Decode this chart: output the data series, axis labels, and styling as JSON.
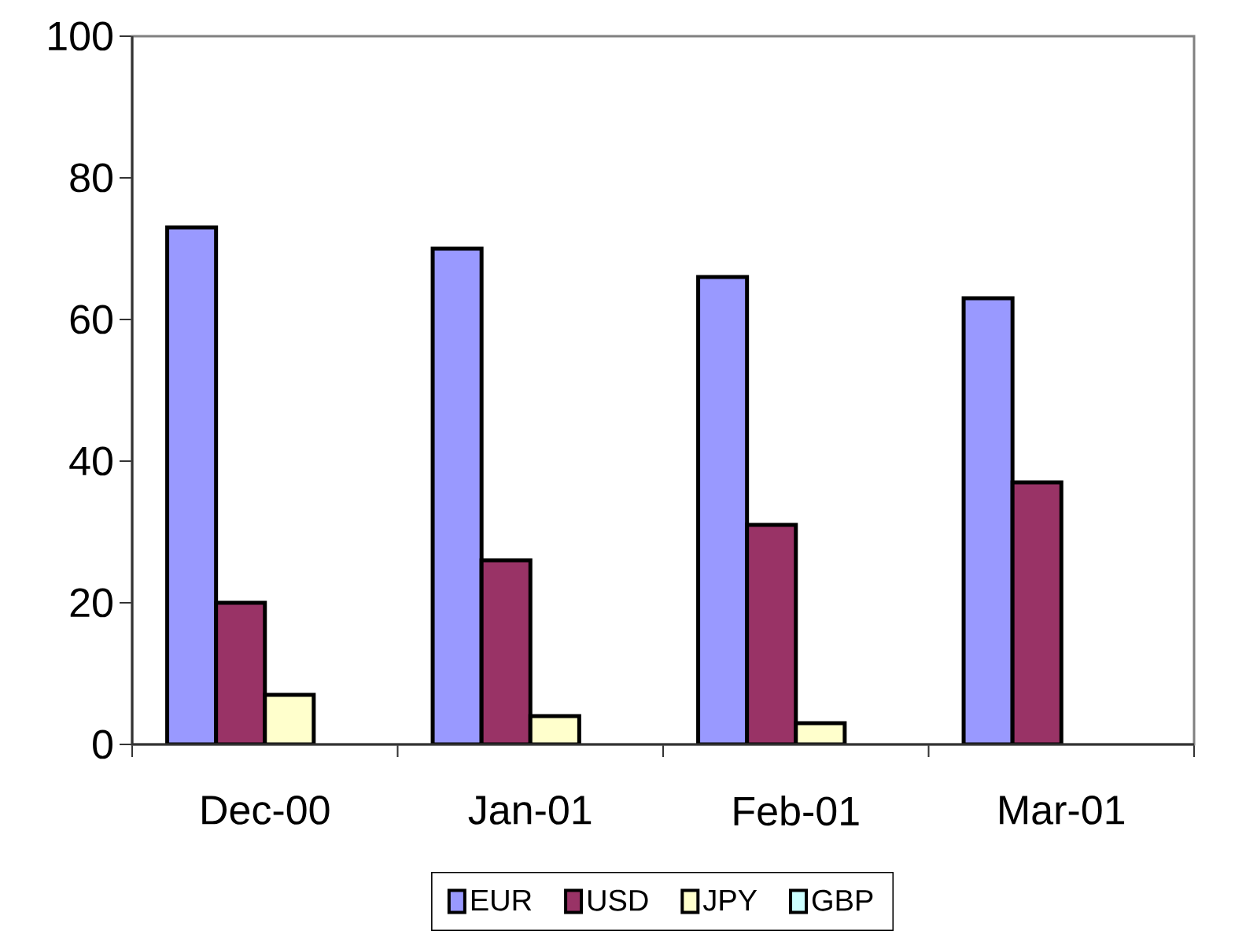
{
  "chart_data": {
    "type": "bar",
    "categories": [
      "Dec-00",
      "Jan-01",
      "Feb-01",
      "Mar-01"
    ],
    "series": [
      {
        "name": "EUR",
        "color": "#9999ff",
        "values": [
          73,
          70,
          66,
          63
        ]
      },
      {
        "name": "USD",
        "color": "#993366",
        "values": [
          20,
          26,
          31,
          37
        ]
      },
      {
        "name": "JPY",
        "color": "#ffffcc",
        "values": [
          7,
          4,
          3,
          null
        ]
      },
      {
        "name": "GBP",
        "color": "#ccffff",
        "values": [
          null,
          null,
          null,
          null
        ]
      }
    ],
    "ylim": [
      0,
      100
    ],
    "yticks": [
      0,
      20,
      40,
      60,
      80,
      100
    ],
    "legend": "bottom"
  }
}
